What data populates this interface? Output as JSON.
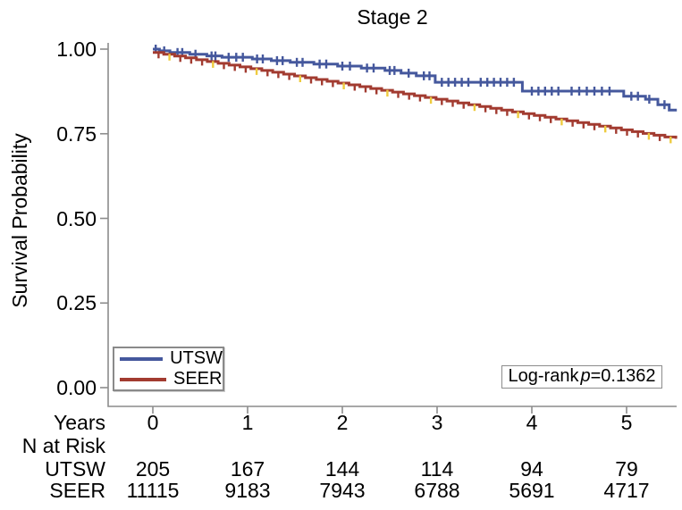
{
  "title": "Stage 2",
  "axes": {
    "x_axis_label": "Years",
    "y_axis_label": "Survival Probability",
    "y_ticks": [
      "1.00",
      "0.75",
      "0.50",
      "0.25",
      "0.00"
    ],
    "y_values": [
      1.0,
      0.75,
      0.5,
      0.25,
      0.0
    ],
    "x_ticks": [
      "0",
      "1",
      "2",
      "3",
      "4",
      "5"
    ],
    "x_values": [
      0,
      1,
      2,
      3,
      4,
      5
    ],
    "axis_color": "#8c8c8c"
  },
  "legend": [
    {
      "label": "UTSW",
      "color": "#45589d"
    },
    {
      "label": "SEER",
      "color": "#a23b30"
    }
  ],
  "pvalue": {
    "prefix": "Log-rank",
    "p": "p",
    "value": "=0.1362"
  },
  "risk_table": {
    "header": "N at Risk",
    "rows": [
      {
        "label": "UTSW",
        "values": [
          "205",
          "167",
          "144",
          "114",
          "94",
          "79"
        ]
      },
      {
        "label": "SEER",
        "values": [
          "11115",
          "9183",
          "7943",
          "6788",
          "5691",
          "4717"
        ]
      }
    ]
  },
  "chart_data": {
    "type": "line",
    "subtype": "kaplan-meier-step",
    "title": "Stage 2",
    "xlabel": "Years",
    "ylabel": "Survival Probability",
    "xlim": [
      -0.47,
      5.53
    ],
    "ylim": [
      0.0,
      1.0
    ],
    "x_ticks": [
      0,
      1,
      2,
      3,
      4,
      5
    ],
    "y_ticks": [
      0.0,
      0.25,
      0.5,
      0.75,
      1.0
    ],
    "grid": false,
    "legend_position": "bottom-left-inside",
    "annotation": "Log-rank p=0.1362",
    "series": [
      {
        "name": "UTSW",
        "color": "#45589d",
        "end_time": 5.53,
        "steps": [
          [
            0,
            1.0
          ],
          [
            0.07,
            0.995
          ],
          [
            0.18,
            0.99
          ],
          [
            0.39,
            0.985
          ],
          [
            0.57,
            0.98
          ],
          [
            0.73,
            0.976
          ],
          [
            1.05,
            0.971
          ],
          [
            1.25,
            0.966
          ],
          [
            1.45,
            0.961
          ],
          [
            1.7,
            0.956
          ],
          [
            1.95,
            0.95
          ],
          [
            2.2,
            0.944
          ],
          [
            2.45,
            0.937
          ],
          [
            2.62,
            0.929
          ],
          [
            2.78,
            0.921
          ],
          [
            2.98,
            0.902
          ],
          [
            3.9,
            0.876
          ],
          [
            4.97,
            0.861
          ],
          [
            5.2,
            0.852
          ],
          [
            5.33,
            0.836
          ],
          [
            5.45,
            0.82
          ]
        ],
        "censor_times": [
          0.03,
          0.12,
          0.26,
          0.31,
          0.45,
          0.62,
          0.66,
          0.8,
          0.88,
          0.95,
          1.1,
          1.16,
          1.31,
          1.37,
          1.52,
          1.58,
          1.76,
          1.83,
          2.0,
          2.08,
          2.26,
          2.33,
          2.5,
          2.55,
          2.7,
          2.86,
          2.92,
          3.05,
          3.12,
          3.19,
          3.26,
          3.33,
          3.46,
          3.53,
          3.6,
          3.67,
          3.74,
          3.81,
          4.0,
          4.07,
          4.14,
          4.21,
          4.28,
          4.42,
          4.5,
          4.58,
          4.66,
          4.74,
          4.82,
          5.05,
          5.12,
          5.24,
          5.4
        ],
        "censor_color": "#45589d"
      },
      {
        "name": "SEER",
        "color": "#a23b30",
        "end_time": 5.52,
        "steps": [
          [
            0,
            0.99
          ],
          [
            0.115,
            0.9847
          ],
          [
            0.23,
            0.9794
          ],
          [
            0.345,
            0.9741
          ],
          [
            0.46,
            0.9687
          ],
          [
            0.575,
            0.9634
          ],
          [
            0.69,
            0.9581
          ],
          [
            0.805,
            0.9528
          ],
          [
            0.92,
            0.9475
          ],
          [
            1.035,
            0.9422
          ],
          [
            1.15,
            0.9369
          ],
          [
            1.265,
            0.9316
          ],
          [
            1.38,
            0.9262
          ],
          [
            1.495,
            0.9209
          ],
          [
            1.61,
            0.9156
          ],
          [
            1.725,
            0.9103
          ],
          [
            1.84,
            0.905
          ],
          [
            1.955,
            0.8997
          ],
          [
            2.07,
            0.8944
          ],
          [
            2.185,
            0.8891
          ],
          [
            2.3,
            0.8837
          ],
          [
            2.415,
            0.8784
          ],
          [
            2.53,
            0.8731
          ],
          [
            2.645,
            0.8678
          ],
          [
            2.76,
            0.8625
          ],
          [
            2.875,
            0.8572
          ],
          [
            2.99,
            0.8519
          ],
          [
            3.105,
            0.8466
          ],
          [
            3.22,
            0.8412
          ],
          [
            3.335,
            0.8359
          ],
          [
            3.45,
            0.8306
          ],
          [
            3.565,
            0.8253
          ],
          [
            3.68,
            0.82
          ],
          [
            3.795,
            0.8147
          ],
          [
            3.91,
            0.8094
          ],
          [
            4.025,
            0.8041
          ],
          [
            4.14,
            0.7987
          ],
          [
            4.255,
            0.7934
          ],
          [
            4.37,
            0.7881
          ],
          [
            4.485,
            0.7828
          ],
          [
            4.6,
            0.7775
          ],
          [
            4.715,
            0.7722
          ],
          [
            4.83,
            0.7669
          ],
          [
            4.945,
            0.7616
          ],
          [
            5.06,
            0.7562
          ],
          [
            5.175,
            0.7509
          ],
          [
            5.29,
            0.7456
          ],
          [
            5.405,
            0.7403
          ],
          [
            5.52,
            0.735
          ]
        ],
        "censor_times": [
          0.06,
          0.29,
          0.405,
          0.52,
          0.75,
          0.865,
          0.98,
          1.21,
          1.325,
          1.44,
          1.67,
          1.785,
          1.9,
          2.13,
          2.245,
          2.36,
          2.59,
          2.705,
          2.82,
          3.05,
          3.165,
          3.28,
          3.51,
          3.625,
          3.74,
          3.97,
          4.085,
          4.2,
          4.43,
          4.545,
          4.66,
          4.89,
          5.005,
          5.12,
          5.35
        ],
        "censor_color": "#a23b30",
        "censor_gold_times": [
          0.175,
          0.635,
          1.095,
          1.555,
          2.015,
          2.475,
          2.935,
          3.395,
          3.855,
          4.315,
          4.775,
          5.235,
          5.465
        ],
        "censor_gold_color": "#eecb3f"
      }
    ]
  }
}
